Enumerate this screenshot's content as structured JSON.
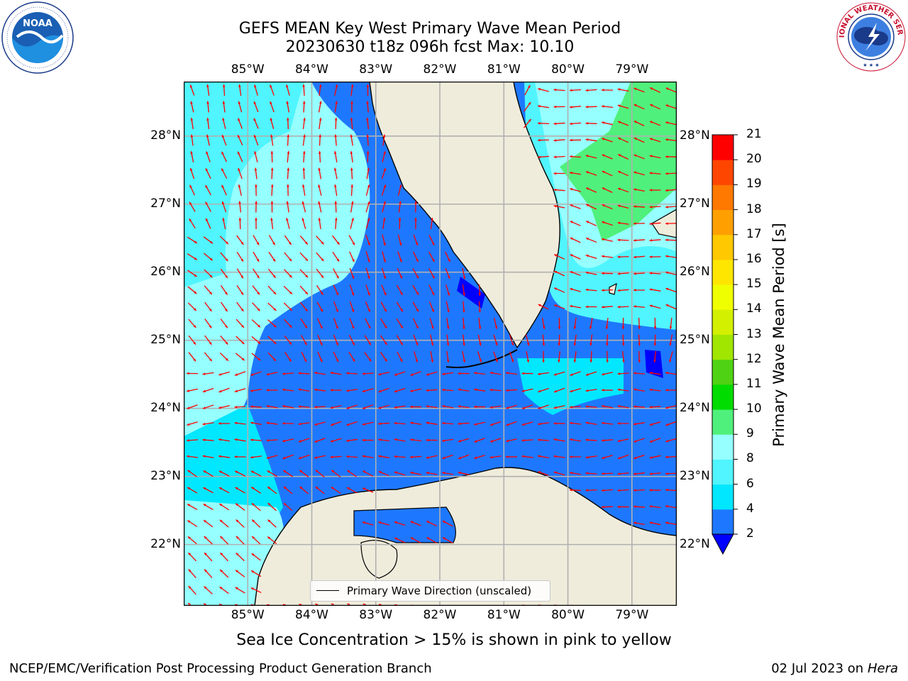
{
  "title": {
    "line1": "GEFS MEAN Key West Primary Wave Mean Period",
    "line2": "20230630 t18z 096h fcst   Max: 10.10"
  },
  "logos": {
    "left": {
      "name": "NOAA",
      "icon": "noaa-logo",
      "ring_text": "NATIONAL OCEANIC AND ATMOSPHERIC ADMINISTRATION · U.S. DEPARTMENT OF COMMERCE"
    },
    "right": {
      "name": "NATIONAL WEATHER SERVICE",
      "icon": "nws-logo"
    }
  },
  "map": {
    "region": "Florida Straits / Key West",
    "lon_labels": [
      "85°W",
      "84°W",
      "83°W",
      "82°W",
      "81°W",
      "80°W",
      "79°W"
    ],
    "lat_labels": [
      "28°N",
      "27°N",
      "26°N",
      "25°N",
      "24°N",
      "23°N",
      "22°N"
    ],
    "lon_range": [
      -86.0,
      -78.3
    ],
    "lat_range": [
      21.1,
      28.8
    ],
    "gridlines": true,
    "land_color": "#efecdc",
    "legend": {
      "label": "Primary Wave Direction (unscaled)",
      "placement": "lower-center"
    },
    "vector_color": "#ff0000"
  },
  "colorbar": {
    "label": "Primary Wave Mean Period [s]",
    "ticks": [
      "21",
      "20",
      "19",
      "18",
      "17",
      "16",
      "15",
      "14",
      "13",
      "12",
      "11",
      "10",
      "9",
      "8",
      "6",
      "4",
      "2"
    ],
    "levels": [
      {
        "range": "<2",
        "color": "#0000ff"
      },
      {
        "range": "2-4",
        "color": "#1e78ff"
      },
      {
        "range": "4-6",
        "color": "#00e7ff"
      },
      {
        "range": "6-8",
        "color": "#50f5ff"
      },
      {
        "range": "8-9",
        "color": "#96ffff"
      },
      {
        "range": "9-10",
        "color": "#50f07c"
      },
      {
        "range": "10-11",
        "color": "#00dc00"
      },
      {
        "range": "11-12",
        "color": "#50d214"
      },
      {
        "range": "12-13",
        "color": "#a0e600"
      },
      {
        "range": "13-14",
        "color": "#d2f000"
      },
      {
        "range": "14-15",
        "color": "#f0ff00"
      },
      {
        "range": "15-16",
        "color": "#ffe600"
      },
      {
        "range": "16-17",
        "color": "#ffc800"
      },
      {
        "range": "17-18",
        "color": "#ffa000"
      },
      {
        "range": "18-19",
        "color": "#ff7800"
      },
      {
        "range": "19-20",
        "color": "#ff4600"
      },
      {
        "range": "20-21",
        "color": "#ff0000"
      }
    ]
  },
  "subcaption": "Sea Ice Concentration > 15% is shown in pink to yellow",
  "footer": {
    "left": "NCEP/EMC/Verification Post Processing Product Generation Branch",
    "right_date": "02 Jul 2023 on ",
    "right_machine": "Hera"
  }
}
